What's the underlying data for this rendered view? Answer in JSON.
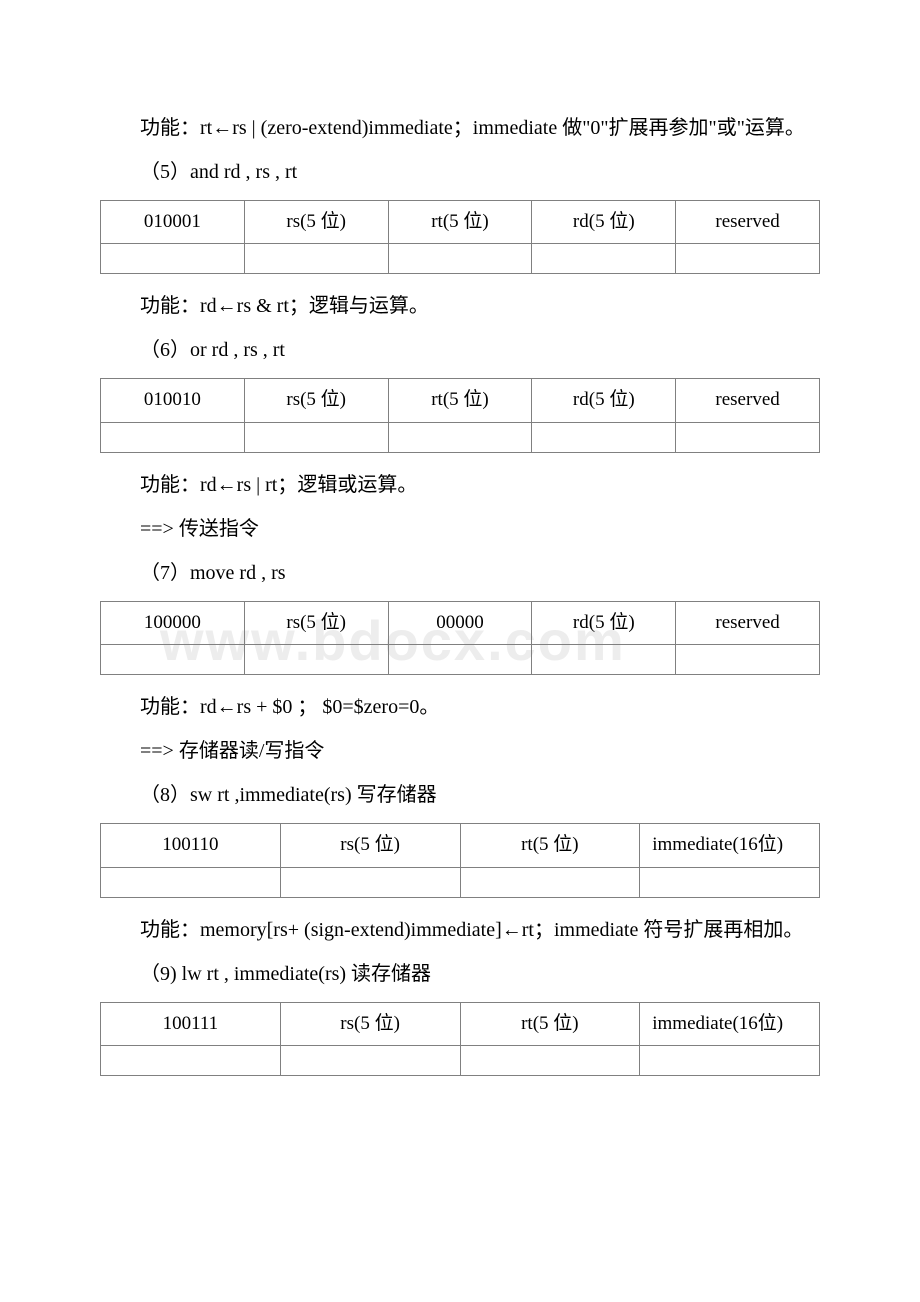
{
  "watermark": "www.bdocx.com",
  "p1": "功能：rt←rs | (zero-extend)immediate；immediate 做\"0\"扩展再参加\"或\"运算。",
  "p2": "（5）and rd , rs , rt",
  "t5": {
    "c1": "010001",
    "c2": "rs(5 位)",
    "c3": "rt(5 位)",
    "c4": "rd(5 位)",
    "c5": "reserved"
  },
  "p3": "功能：rd←rs & rt；逻辑与运算。",
  "p4": "（6）or rd , rs , rt",
  "t6": {
    "c1": "010010",
    "c2": "rs(5 位)",
    "c3": "rt(5 位)",
    "c4": "rd(5 位)",
    "c5": "reserved"
  },
  "p5": "功能：rd←rs | rt；逻辑或运算。",
  "p6": " ==> 传送指令",
  "p7": "（7）move rd , rs",
  "t7": {
    "c1": "100000",
    "c2": "rs(5 位)",
    "c3": "00000",
    "c4": "rd(5 位)",
    "c5": "reserved"
  },
  "p8": "功能：rd←rs + $0 ； $0=$zero=0。",
  "p9": " ==> 存储器读/写指令",
  "p10": "（8）sw rt ,immediate(rs) 写存储器",
  "t8": {
    "c1": "100110",
    "c2": "rs(5 位)",
    "c3": "rt(5 位)",
    "c4": "immediate(16位)"
  },
  "p11": "功能：memory[rs+ (sign-extend)immediate]←rt；immediate 符号扩展再相加。",
  "p12": "（9) lw rt , immediate(rs) 读存储器",
  "t9": {
    "c1": "100111",
    "c2": "rs(5 位)",
    "c3": "rt(5 位)",
    "c4": "immediate(16位)"
  }
}
